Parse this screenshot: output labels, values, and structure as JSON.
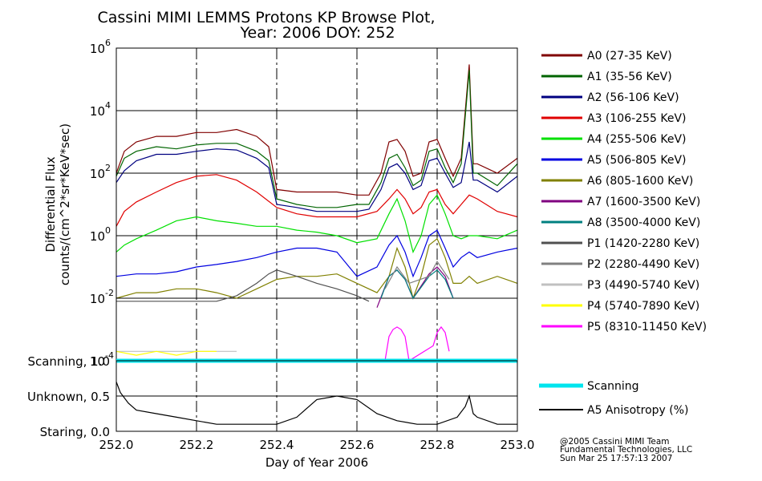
{
  "title_line1": "Cassini MIMI LEMMS Protons KP Browse Plot,",
  "title_line2": "Year: 2006 DOY: 252",
  "footer": {
    "line1": "@2005 Cassini MIMI Team",
    "line2": "Fundamental Technologies, LLC",
    "line3": "Sun Mar 25 17:57:13 2007"
  },
  "chart_data": [
    {
      "type": "line",
      "name": "flux-panel",
      "ylabel_line1": "Differential Flux",
      "ylabel_line2": "counts/(cm^2*sr*KeV*sec)",
      "xlim": [
        252.0,
        253.0
      ],
      "ylim_log10": [
        -4,
        6
      ],
      "y_scale": "log",
      "y_ticks": [
        {
          "base": "10",
          "exp": "6",
          "log": 6
        },
        {
          "base": "10",
          "exp": "4",
          "log": 4
        },
        {
          "base": "10",
          "exp": "2",
          "log": 2
        },
        {
          "base": "10",
          "exp": "0",
          "log": 0
        },
        {
          "base": "10",
          "exp": "-2",
          "log": -2
        },
        {
          "base": "10",
          "exp": "-4",
          "log": -4
        }
      ],
      "hgrid_log10": [
        -2,
        0,
        2,
        4
      ],
      "vgrid_dashed": [
        252.2,
        252.4,
        252.6,
        252.8
      ],
      "legend_placement": "right",
      "series": [
        {
          "name": "A0 (27-35 KeV)",
          "color": "#800000",
          "x": [
            252.0,
            252.02,
            252.05,
            252.1,
            252.15,
            252.2,
            252.25,
            252.3,
            252.35,
            252.38,
            252.4,
            252.45,
            252.5,
            252.55,
            252.6,
            252.63,
            252.66,
            252.68,
            252.7,
            252.72,
            252.74,
            252.76,
            252.78,
            252.8,
            252.82,
            252.84,
            252.86,
            252.88,
            252.89,
            252.9,
            252.95,
            253.0
          ],
          "y": [
            100,
            500,
            1000,
            1500,
            1500,
            2000,
            2000,
            2500,
            1500,
            700,
            30,
            25,
            25,
            25,
            20,
            20,
            100,
            1000,
            1200,
            500,
            80,
            100,
            1000,
            1200,
            300,
            80,
            300,
            300000,
            200,
            200,
            100,
            300
          ]
        },
        {
          "name": "A1 (35-56 KeV)",
          "color": "#006400",
          "x": [
            252.0,
            252.02,
            252.05,
            252.1,
            252.15,
            252.2,
            252.25,
            252.3,
            252.35,
            252.38,
            252.4,
            252.45,
            252.5,
            252.55,
            252.6,
            252.63,
            252.66,
            252.68,
            252.7,
            252.72,
            252.74,
            252.76,
            252.78,
            252.8,
            252.82,
            252.84,
            252.86,
            252.88,
            252.89,
            252.9,
            252.95,
            253.0
          ],
          "y": [
            80,
            300,
            500,
            700,
            600,
            800,
            900,
            900,
            500,
            250,
            15,
            10,
            8,
            8,
            10,
            10,
            50,
            300,
            400,
            150,
            40,
            60,
            500,
            600,
            150,
            50,
            200,
            200000,
            100,
            100,
            40,
            200
          ]
        },
        {
          "name": "A2 (56-106 KeV)",
          "color": "#000080",
          "x": [
            252.0,
            252.02,
            252.05,
            252.1,
            252.15,
            252.2,
            252.25,
            252.3,
            252.35,
            252.38,
            252.4,
            252.45,
            252.5,
            252.55,
            252.6,
            252.63,
            252.66,
            252.68,
            252.7,
            252.72,
            252.74,
            252.76,
            252.78,
            252.8,
            252.82,
            252.84,
            252.86,
            252.88,
            252.89,
            252.9,
            252.95,
            253.0
          ],
          "y": [
            50,
            120,
            250,
            400,
            400,
            500,
            600,
            550,
            300,
            150,
            10,
            8,
            6,
            6,
            6,
            7,
            30,
            150,
            200,
            100,
            30,
            40,
            250,
            300,
            100,
            35,
            50,
            1000,
            60,
            60,
            25,
            80
          ]
        },
        {
          "name": "A3 (106-255 KeV)",
          "color": "#e00000",
          "x": [
            252.0,
            252.02,
            252.05,
            252.1,
            252.15,
            252.2,
            252.25,
            252.3,
            252.35,
            252.4,
            252.45,
            252.5,
            252.55,
            252.6,
            252.65,
            252.68,
            252.7,
            252.72,
            252.74,
            252.76,
            252.78,
            252.8,
            252.82,
            252.84,
            252.86,
            252.88,
            252.9,
            252.95,
            253.0
          ],
          "y": [
            2,
            6,
            12,
            25,
            50,
            80,
            90,
            60,
            25,
            8,
            5,
            4,
            4,
            4,
            6,
            15,
            30,
            15,
            5,
            8,
            25,
            30,
            10,
            5,
            10,
            20,
            15,
            6,
            4
          ]
        },
        {
          "name": "A4 (255-506 KeV)",
          "color": "#00e000",
          "x": [
            252.0,
            252.02,
            252.05,
            252.1,
            252.15,
            252.2,
            252.25,
            252.3,
            252.35,
            252.4,
            252.45,
            252.5,
            252.55,
            252.6,
            252.65,
            252.68,
            252.7,
            252.72,
            252.74,
            252.76,
            252.78,
            252.8,
            252.82,
            252.84,
            252.86,
            252.88,
            252.9,
            252.95,
            253.0
          ],
          "y": [
            0.3,
            0.5,
            0.8,
            1.5,
            3,
            4,
            3,
            2.5,
            2,
            2,
            1.5,
            1.3,
            1,
            0.6,
            0.8,
            5,
            15,
            3,
            0.3,
            1,
            10,
            20,
            5,
            1,
            0.8,
            1,
            1,
            0.8,
            1.5
          ]
        },
        {
          "name": "A5 (506-805 KeV)",
          "color": "#0000e0",
          "x": [
            252.0,
            252.05,
            252.1,
            252.15,
            252.2,
            252.25,
            252.3,
            252.35,
            252.4,
            252.45,
            252.5,
            252.55,
            252.6,
            252.65,
            252.68,
            252.7,
            252.72,
            252.74,
            252.76,
            252.78,
            252.8,
            252.82,
            252.84,
            252.86,
            252.88,
            252.9,
            252.95,
            253.0
          ],
          "y": [
            0.05,
            0.06,
            0.06,
            0.07,
            0.1,
            0.12,
            0.15,
            0.2,
            0.3,
            0.4,
            0.4,
            0.3,
            0.05,
            0.1,
            0.5,
            1,
            0.3,
            0.05,
            0.2,
            1,
            1.5,
            0.4,
            0.1,
            0.2,
            0.3,
            0.2,
            0.3,
            0.4
          ]
        },
        {
          "name": "A6 (805-1600 KeV)",
          "color": "#808000",
          "x": [
            252.0,
            252.05,
            252.1,
            252.15,
            252.2,
            252.25,
            252.3,
            252.35,
            252.4,
            252.45,
            252.5,
            252.55,
            252.6,
            252.65,
            252.68,
            252.7,
            252.72,
            252.74,
            252.76,
            252.78,
            252.8,
            252.82,
            252.84,
            252.86,
            252.88,
            252.9,
            252.95,
            253.0
          ],
          "y": [
            0.01,
            0.015,
            0.015,
            0.02,
            0.02,
            0.015,
            0.01,
            0.02,
            0.04,
            0.05,
            0.05,
            0.06,
            0.03,
            0.015,
            0.05,
            0.4,
            0.1,
            0.01,
            0.05,
            0.5,
            0.8,
            0.2,
            0.03,
            0.03,
            0.05,
            0.03,
            0.05,
            0.03
          ]
        },
        {
          "name": "A7 (1600-3500 KeV)",
          "color": "#800080",
          "x": [
            252.65,
            252.68,
            252.7,
            252.72,
            252.74,
            252.78,
            252.8,
            252.82,
            252.84
          ],
          "y": [
            0.005,
            0.05,
            0.08,
            0.04,
            0.01,
            0.06,
            0.1,
            0.05,
            0.01
          ]
        },
        {
          "name": "A8 (3500-4000 KeV)",
          "color": "#008080",
          "x": [
            252.66,
            252.68,
            252.7,
            252.72,
            252.74,
            252.78,
            252.8,
            252.82,
            252.84
          ],
          "y": [
            0.01,
            0.05,
            0.08,
            0.04,
            0.01,
            0.05,
            0.08,
            0.04,
            0.01
          ]
        },
        {
          "name": "P1 (1420-2280 KeV)",
          "color": "#505050",
          "x": [
            252.0,
            252.1,
            252.2,
            252.25,
            252.3,
            252.35,
            252.38,
            252.4,
            252.45,
            252.5,
            252.55,
            252.6,
            252.63
          ],
          "y": [
            0.008,
            0.008,
            0.008,
            0.008,
            0.012,
            0.03,
            0.06,
            0.08,
            0.05,
            0.03,
            0.02,
            0.012,
            0.008
          ]
        },
        {
          "name": "P2 (2280-4490 KeV)",
          "color": "#808080",
          "x": [
            252.67,
            252.7,
            252.73,
            252.78,
            252.8,
            252.83
          ],
          "y": [
            0.02,
            0.1,
            0.03,
            0.05,
            0.15,
            0.04
          ]
        },
        {
          "name": "P3 (4490-5740 KeV)",
          "color": "#c0c0c0",
          "x": [
            252.0,
            252.1,
            252.2,
            252.3
          ],
          "y": [
            0.0002,
            0.0002,
            0.0002,
            0.0002
          ]
        },
        {
          "name": "P4 (5740-7890 KeV)",
          "color": "#ffff00",
          "x": [
            252.0,
            252.05,
            252.1,
            252.15,
            252.2,
            252.25
          ],
          "y": [
            0.0002,
            0.00015,
            0.0002,
            0.00015,
            0.0002,
            0.0002
          ]
        },
        {
          "name": "P5 (8310-11450 KeV)",
          "color": "#ff00ff",
          "x": [
            252.67,
            252.68,
            252.69,
            252.7,
            252.71,
            252.72,
            252.73,
            252.79,
            252.8,
            252.81,
            252.82,
            252.83
          ],
          "y": [
            0.0001,
            0.0006,
            0.001,
            0.0012,
            0.001,
            0.0006,
            0.0001,
            0.0003,
            0.0008,
            0.0012,
            0.0008,
            0.0002
          ]
        }
      ]
    },
    {
      "type": "line",
      "name": "anisotropy-panel",
      "xlabel": "Day of Year 2006",
      "xlim": [
        252.0,
        253.0
      ],
      "ylim": [
        0.0,
        1.0
      ],
      "x_ticks": [
        {
          "label": "252.0",
          "value": 252.0
        },
        {
          "label": "252.2",
          "value": 252.2
        },
        {
          "label": "252.4",
          "value": 252.4
        },
        {
          "label": "252.6",
          "value": 252.6
        },
        {
          "label": "252.8",
          "value": 252.8
        },
        {
          "label": "253.0",
          "value": 253.0
        }
      ],
      "y_ticks": [
        {
          "label": "Scanning, 1.0",
          "value": 1.0
        },
        {
          "label": "Unknown, 0.5",
          "value": 0.5
        },
        {
          "label": "Staring, 0.0",
          "value": 0.0
        }
      ],
      "series": [
        {
          "name": "Scanning",
          "color": "#00e5ee",
          "x": [
            252.0,
            253.0
          ],
          "y": [
            1.0,
            1.0
          ]
        },
        {
          "name": "A5 Anisotropy (%)",
          "color": "#000000",
          "x": [
            252.0,
            252.01,
            252.03,
            252.05,
            252.1,
            252.15,
            252.2,
            252.25,
            252.3,
            252.35,
            252.4,
            252.45,
            252.5,
            252.55,
            252.6,
            252.65,
            252.7,
            252.75,
            252.8,
            252.85,
            252.87,
            252.88,
            252.89,
            252.9,
            252.95,
            253.0
          ],
          "y": [
            0.7,
            0.55,
            0.4,
            0.3,
            0.25,
            0.2,
            0.15,
            0.1,
            0.1,
            0.1,
            0.1,
            0.2,
            0.45,
            0.5,
            0.45,
            0.25,
            0.15,
            0.1,
            0.1,
            0.2,
            0.35,
            0.5,
            0.25,
            0.2,
            0.1,
            0.1
          ]
        }
      ]
    }
  ]
}
